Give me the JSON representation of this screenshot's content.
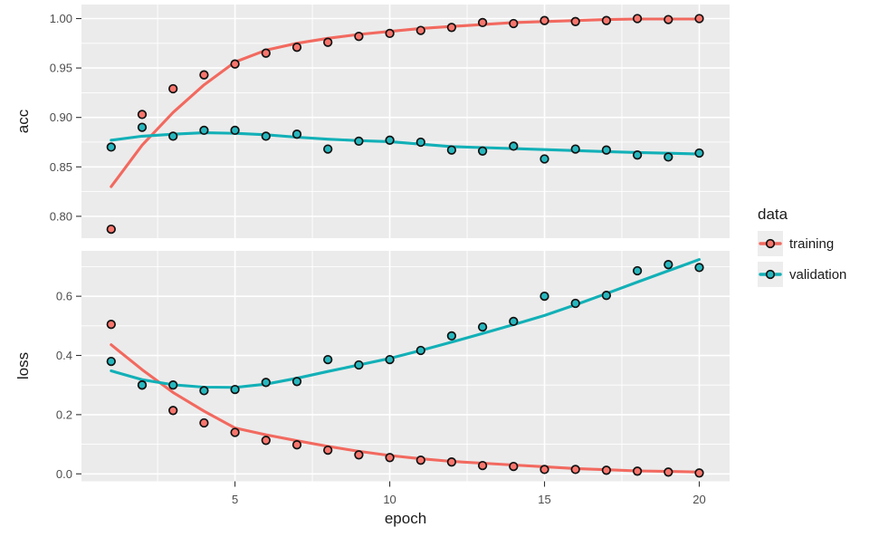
{
  "colors": {
    "background": "#FFFFFF",
    "panel_bg": "#EBEBEB",
    "grid": "#FFFFFF",
    "tick_mark": "#333333",
    "tick_label": "#4D4D4D",
    "axis_title": "#1A1A1A",
    "point_outline": "#111111",
    "legend_key_bg": "#EDEDED",
    "training": "#F2695F",
    "validation": "#12B0B7"
  },
  "legend": {
    "title": "data",
    "items": [
      {
        "label": "training",
        "color": "#F2695F",
        "fill": "#F8766D"
      },
      {
        "label": "validation",
        "color": "#12B0B7",
        "fill": "#27B7BE"
      }
    ]
  },
  "chart_data": {
    "type": "scatter",
    "title": "",
    "xlabel": "epoch",
    "legend_position": "right",
    "grid": true,
    "x": [
      1,
      2,
      3,
      4,
      5,
      6,
      7,
      8,
      9,
      10,
      11,
      12,
      13,
      14,
      15,
      16,
      17,
      18,
      19,
      20
    ],
    "xlim": [
      0.04,
      20.98
    ],
    "xticks": {
      "values": [
        5,
        10,
        15,
        20
      ],
      "labels": [
        "5",
        "10",
        "15",
        "20"
      ]
    },
    "x_minor": [
      2.5,
      7.5,
      12.5,
      17.5
    ],
    "panels": [
      {
        "ylabel": "acc",
        "ylim": [
          0.7779,
          1.0142
        ],
        "yticks": {
          "values": [
            1.0,
            0.95,
            0.9,
            0.85,
            0.8
          ],
          "labels": [
            "1.00",
            "0.95",
            "0.90",
            "0.85",
            "0.80"
          ]
        },
        "y_minor": [
          0.975,
          0.925,
          0.875,
          0.825
        ],
        "series": [
          {
            "name": "training",
            "color": "#F2695F",
            "fill": "#F8766D",
            "points": [
              0.787,
              0.903,
              0.929,
              0.943,
              0.954,
              0.965,
              0.971,
              0.976,
              0.982,
              0.985,
              0.988,
              0.991,
              0.996,
              0.995,
              0.998,
              0.997,
              0.998,
              1.0,
              0.999,
              1.0
            ],
            "smooth": [
              0.83,
              0.872,
              0.905,
              0.933,
              0.956,
              0.968,
              0.975,
              0.98,
              0.984,
              0.987,
              0.99,
              0.992,
              0.994,
              0.996,
              0.997,
              0.998,
              0.999,
              0.9995,
              0.9995,
              0.9995
            ]
          },
          {
            "name": "validation",
            "color": "#12B0B7",
            "fill": "#27B7BE",
            "points": [
              0.87,
              0.89,
              0.881,
              0.887,
              0.887,
              0.881,
              0.883,
              0.868,
              0.876,
              0.877,
              0.875,
              0.867,
              0.866,
              0.871,
              0.858,
              0.868,
              0.867,
              0.862,
              0.86,
              0.864
            ],
            "smooth": [
              0.877,
              0.881,
              0.883,
              0.8845,
              0.884,
              0.8825,
              0.88,
              0.878,
              0.8765,
              0.8755,
              0.873,
              0.8705,
              0.8695,
              0.8685,
              0.8675,
              0.8665,
              0.8655,
              0.8645,
              0.8638,
              0.863
            ]
          }
        ]
      },
      {
        "ylabel": "loss",
        "ylim": [
          -0.0252,
          0.7534
        ],
        "yticks": {
          "values": [
            0.0,
            0.2,
            0.4,
            0.6
          ],
          "labels": [
            "0.0",
            "0.2",
            "0.4",
            "0.6"
          ]
        },
        "y_minor": [
          0.1,
          0.3,
          0.5,
          0.7
        ],
        "series": [
          {
            "name": "training",
            "color": "#F2695F",
            "fill": "#F8766D",
            "points": [
              0.505,
              0.3,
              0.214,
              0.172,
              0.14,
              0.113,
              0.098,
              0.08,
              0.064,
              0.055,
              0.046,
              0.04,
              0.028,
              0.025,
              0.015,
              0.015,
              0.012,
              0.009,
              0.006,
              0.003
            ],
            "smooth": [
              0.436,
              0.352,
              0.275,
              0.212,
              0.155,
              0.132,
              0.112,
              0.093,
              0.076,
              0.062,
              0.051,
              0.042,
              0.036,
              0.03,
              0.024,
              0.018,
              0.014,
              0.01,
              0.008,
              0.006
            ]
          },
          {
            "name": "validation",
            "color": "#12B0B7",
            "fill": "#27B7BE",
            "points": [
              0.38,
              0.3,
              0.3,
              0.281,
              0.285,
              0.309,
              0.312,
              0.386,
              0.368,
              0.386,
              0.417,
              0.466,
              0.496,
              0.515,
              0.6,
              0.576,
              0.603,
              0.686,
              0.707,
              0.697
            ],
            "smooth": [
              0.348,
              0.318,
              0.301,
              0.293,
              0.292,
              0.303,
              0.323,
              0.346,
              0.368,
              0.39,
              0.417,
              0.445,
              0.474,
              0.504,
              0.535,
              0.571,
              0.609,
              0.648,
              0.686,
              0.724
            ]
          }
        ]
      }
    ]
  }
}
